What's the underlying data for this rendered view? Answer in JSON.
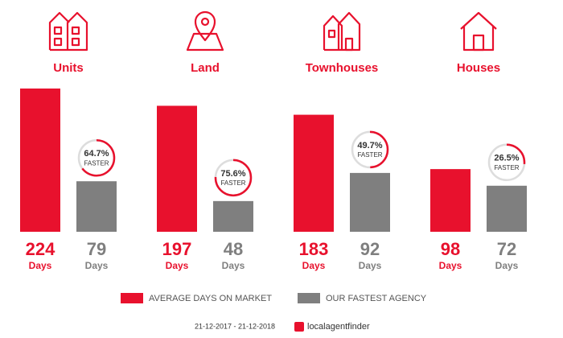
{
  "chart_data": {
    "type": "bar",
    "categories": [
      "Units",
      "Land",
      "Townhouses",
      "Houses"
    ],
    "series": [
      {
        "name": "AVERAGE DAYS ON MARKET",
        "color": "#e8112d",
        "values": [
          224,
          197,
          183,
          98
        ]
      },
      {
        "name": "OUR FASTEST AGENCY",
        "color": "#7f7f7f",
        "values": [
          79,
          48,
          92,
          72
        ]
      }
    ],
    "unit_label": "Days",
    "faster": {
      "values": [
        64.7,
        75.6,
        49.7,
        26.5
      ],
      "value_labels": [
        "64.7%",
        "75.6%",
        "49.7%",
        "26.5%"
      ],
      "label": "FASTER",
      "color": "#e8112d"
    },
    "date_range": "21-12-2017 - 21-12-2018",
    "brand": "localagentfinder"
  }
}
